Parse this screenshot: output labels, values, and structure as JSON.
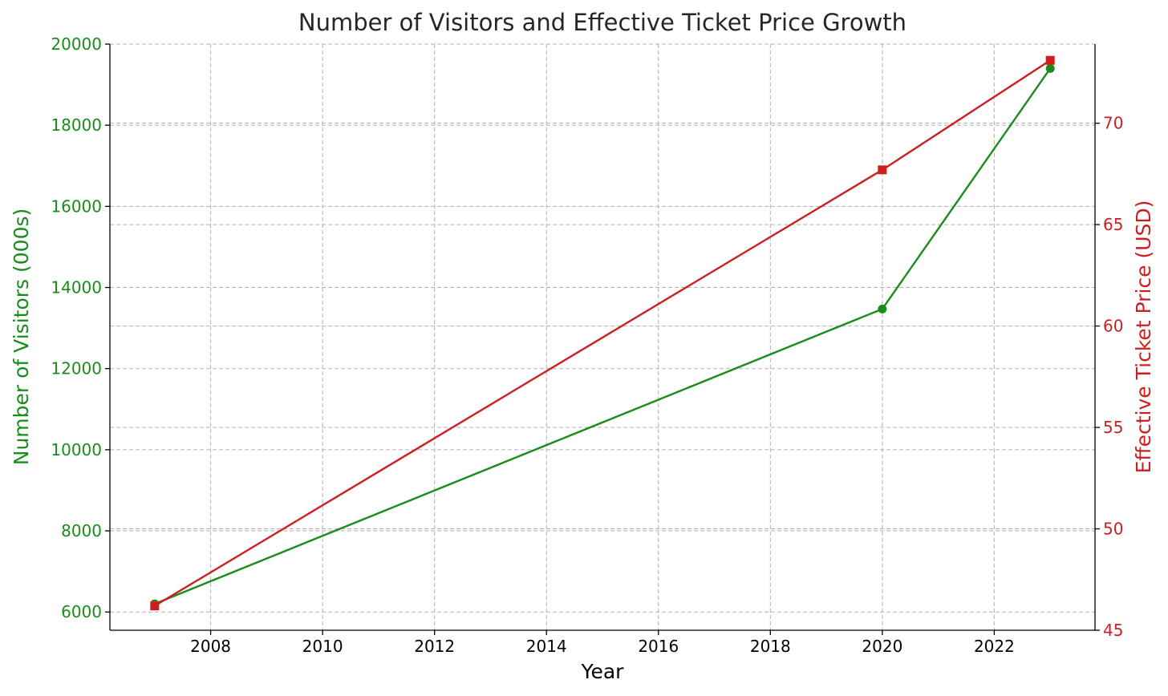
{
  "chart_data": {
    "type": "line",
    "title": "Number of Visitors and Effective Ticket Price Growth",
    "xlabel": "Year",
    "ylabel_left": "Number of Visitors (000s)",
    "ylabel_right": "Effective Ticket Price (USD)",
    "xlim": [
      2006.2,
      2023.8
    ],
    "ylim_left": [
      5550,
      20000
    ],
    "ylim_right": [
      45,
      73.9
    ],
    "x_ticks": [
      2008,
      2010,
      2012,
      2014,
      2016,
      2018,
      2020,
      2022
    ],
    "y_ticks_left": [
      6000,
      8000,
      10000,
      12000,
      14000,
      16000,
      18000,
      20000
    ],
    "y_ticks_right": [
      45,
      50,
      55,
      60,
      65,
      70
    ],
    "grid": true,
    "series": [
      {
        "axis": "left",
        "color": "#1a8c1a",
        "marker": "circle",
        "x": [
          2007,
          2020,
          2023
        ],
        "values": [
          6200,
          13470,
          19400
        ]
      },
      {
        "axis": "right",
        "color": "#cc1f1f",
        "marker": "square",
        "x": [
          2007,
          2020,
          2023
        ],
        "values": [
          46.2,
          67.7,
          73.1
        ]
      }
    ],
    "colors": {
      "left_axis": "#1a8c1a",
      "right_axis": "#cc1f1f",
      "text": "#262626",
      "grid": "#b0b0b0"
    }
  }
}
